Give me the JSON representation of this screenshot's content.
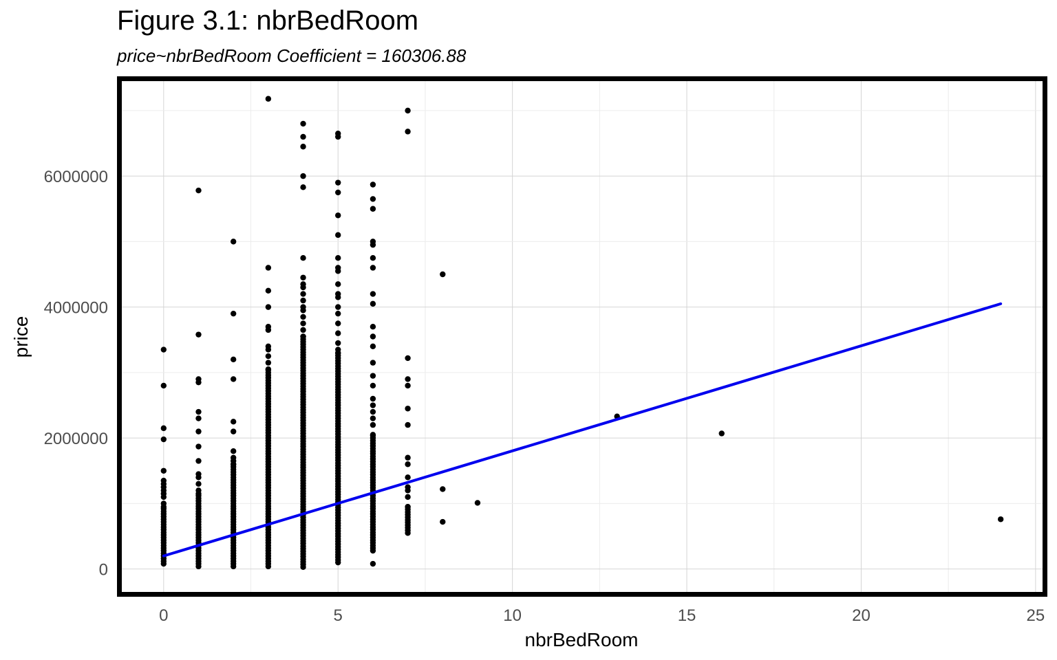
{
  "chart_data": {
    "type": "scatter",
    "title": "Figure 3.1: nbrBedRoom",
    "subtitle": "price~nbrBedRoom Coefficient = 160306.88",
    "xlabel": "nbrBedRoom",
    "ylabel": "price",
    "xlim": [
      -1.2,
      25.2
    ],
    "ylim": [
      -350000,
      7450000
    ],
    "x_ticks": [
      0,
      5,
      10,
      15,
      20,
      25
    ],
    "x_tick_labels": [
      "0",
      "5",
      "10",
      "15",
      "20",
      "25"
    ],
    "y_ticks": [
      0,
      2000000,
      4000000,
      6000000
    ],
    "y_tick_labels": [
      "0",
      "2000000",
      "4000000",
      "6000000"
    ],
    "grid": true,
    "point_color": "#000000",
    "line_color": "#0000ee",
    "regression_line": {
      "x": [
        0,
        24
      ],
      "y": [
        200000,
        4050000
      ]
    },
    "columns": [
      {
        "x": 0,
        "min": 80000,
        "max": 950000,
        "outliers": [
          1000000,
          1100000,
          1150000,
          1200000,
          1250000,
          1300000,
          1350000,
          1500000,
          1980000,
          2150000,
          2800000,
          3350000
        ]
      },
      {
        "x": 1,
        "min": 40000,
        "max": 1150000,
        "outliers": [
          1200000,
          1300000,
          1400000,
          1450000,
          1650000,
          1870000,
          2100000,
          2300000,
          2400000,
          2850000,
          2900000,
          3580000,
          5780000
        ]
      },
      {
        "x": 2,
        "min": 40000,
        "max": 1600000,
        "outliers": [
          1650000,
          1700000,
          1800000,
          2100000,
          2250000,
          2900000,
          3200000,
          3900000,
          5000000
        ]
      },
      {
        "x": 3,
        "min": 40000,
        "max": 3050000,
        "outliers": [
          3150000,
          3250000,
          3350000,
          3400000,
          3650000,
          3700000,
          4000000,
          4250000,
          4600000,
          7180000
        ]
      },
      {
        "x": 4,
        "min": 30000,
        "max": 3550000,
        "outliers": [
          3650000,
          3750000,
          3850000,
          3950000,
          4000000,
          4100000,
          4200000,
          4300000,
          4350000,
          4450000,
          4750000,
          5830000,
          6000000,
          6450000,
          6600000,
          6800000
        ]
      },
      {
        "x": 5,
        "min": 100000,
        "max": 3300000,
        "outliers": [
          3350000,
          3450000,
          3600000,
          3750000,
          3900000,
          4000000,
          4150000,
          4200000,
          4350000,
          4550000,
          4600000,
          4750000,
          5100000,
          5400000,
          5750000,
          5900000,
          6600000,
          6650000
        ]
      },
      {
        "x": 6,
        "min": 280000,
        "max": 2050000,
        "outliers": [
          80000,
          2200000,
          2300000,
          2400000,
          2500000,
          2600000,
          2800000,
          2950000,
          3150000,
          3400000,
          3550000,
          3700000,
          4050000,
          4200000,
          4600000,
          4750000,
          4950000,
          5000000,
          5500000,
          5650000,
          5870000
        ]
      },
      {
        "x": 7,
        "min": 550000,
        "max": 950000,
        "outliers": [
          1100000,
          1200000,
          1250000,
          1400000,
          1600000,
          1700000,
          2200000,
          2450000,
          2800000,
          2900000,
          3220000,
          6680000,
          7000000
        ]
      }
    ],
    "isolated_points": [
      {
        "x": 8,
        "y": 720000
      },
      {
        "x": 8,
        "y": 1220000
      },
      {
        "x": 8,
        "y": 4500000
      },
      {
        "x": 9,
        "y": 1010000
      },
      {
        "x": 13,
        "y": 2330000
      },
      {
        "x": 16,
        "y": 2070000
      },
      {
        "x": 24,
        "y": 760000
      }
    ]
  }
}
